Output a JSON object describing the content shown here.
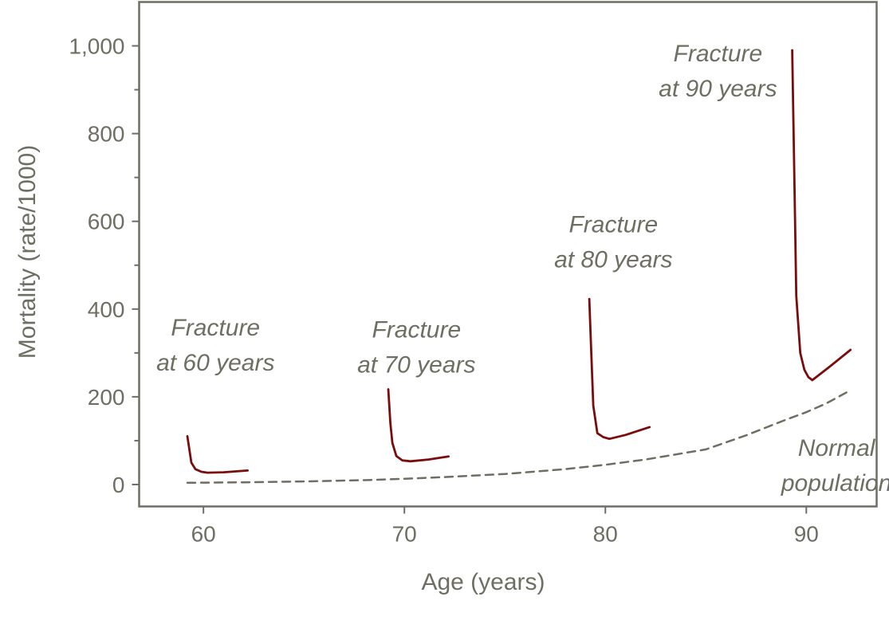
{
  "chart_data": {
    "type": "line",
    "xlabel": "Age (years)",
    "ylabel": "Mortality (rate/1000)",
    "xlim": [
      56.8,
      93.5
    ],
    "ylim": [
      -50,
      1100
    ],
    "x_ticks": [
      60,
      70,
      80,
      90
    ],
    "x_tick_labels": [
      "60",
      "70",
      "80",
      "90"
    ],
    "y_ticks": [
      0,
      200,
      400,
      600,
      800,
      1000
    ],
    "y_tick_labels": [
      "0",
      "200",
      "400",
      "600",
      "800",
      "1,000"
    ],
    "y_minor_ticks": [
      100,
      300,
      500,
      700,
      900
    ],
    "grid": false,
    "colors": {
      "fracture": "#7a0c0c",
      "normal": "#6e6e62",
      "axis": "#6e6e62"
    },
    "series": [
      {
        "name": "Normal population",
        "style": "dashed",
        "x": [
          59.2,
          62,
          65,
          68,
          70,
          72,
          75,
          78,
          80,
          82,
          85,
          87,
          89,
          90,
          91,
          92
        ],
        "y": [
          4,
          5,
          7,
          10,
          13,
          17,
          24,
          35,
          45,
          57,
          80,
          112,
          148,
          165,
          185,
          210
        ]
      },
      {
        "name": "Fracture at 60 years",
        "style": "solid",
        "x": [
          59.2,
          59.3,
          59.4,
          59.6,
          59.9,
          60.2,
          61.0,
          62.2
        ],
        "y": [
          110,
          80,
          50,
          35,
          29,
          27,
          28,
          32
        ]
      },
      {
        "name": "Fracture at 70 years",
        "style": "solid",
        "x": [
          69.2,
          69.3,
          69.4,
          69.6,
          69.9,
          70.3,
          71.2,
          72.2
        ],
        "y": [
          217,
          140,
          95,
          65,
          55,
          53,
          57,
          64
        ]
      },
      {
        "name": "Fracture at 80 years",
        "style": "solid",
        "x": [
          79.2,
          79.3,
          79.4,
          79.6,
          79.9,
          80.2,
          81.0,
          82.2
        ],
        "y": [
          423,
          300,
          180,
          117,
          108,
          104,
          113,
          131
        ]
      },
      {
        "name": "Fracture at 90 years",
        "style": "solid",
        "x": [
          89.3,
          89.4,
          89.5,
          89.7,
          89.9,
          90.1,
          90.3,
          91.2,
          92.2
        ],
        "y": [
          990,
          710,
          430,
          300,
          262,
          245,
          238,
          270,
          307
        ]
      }
    ],
    "annotations": [
      {
        "lines": [
          "Fracture",
          "at 60 years"
        ],
        "x": 60.6,
        "y": 340
      },
      {
        "lines": [
          "Fracture",
          "at 70 years"
        ],
        "x": 70.6,
        "y": 335
      },
      {
        "lines": [
          "Fracture",
          "at 80 years"
        ],
        "x": 80.4,
        "y": 575
      },
      {
        "lines": [
          "Fracture",
          "at 90 years"
        ],
        "x": 85.6,
        "y": 965
      },
      {
        "lines": [
          "Normal",
          "population"
        ],
        "x": 91.5,
        "y": 65
      }
    ]
  }
}
